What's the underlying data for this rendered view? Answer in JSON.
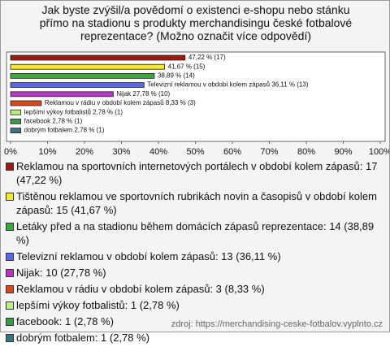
{
  "chart_data": {
    "type": "barh",
    "title": "Jak byste zvýšil/a povědomí o existenci e-shopu nebo stánku přímo na stadionu s produkty merchandisingu české fotbalové reprezentace? (Možno označit více odpovědí)",
    "values": [
      47.22,
      41.67,
      38.89,
      36.11,
      27.78,
      8.33,
      2.78,
      2.78,
      2.78
    ],
    "value_labels": [
      "47,22 % (17)",
      "41,67 % (15)",
      "38,89 % (14)",
      "Televizní reklamou v období kolem zápasů 36,11 % (13)",
      "Nijak 27,78 % (10)",
      "Reklamou v rádiu v období kolem zápasů 8,33 % (3)",
      "lepšími výkoy fotbalistů 2,78 % (1)",
      "facebook 2,78 % (1)",
      "dobrým fotbalem 2,78 % (1)"
    ],
    "colors": [
      "#9b1c0e",
      "#f2e63a",
      "#3aa83a",
      "#5a68e6",
      "#b636c8",
      "#d8481e",
      "#b9ee82",
      "#3d9a48",
      "#3b7483"
    ],
    "legend_labels": [
      "Reklamou na sportovních internetových portálech v období kolem zápasů: 17 (47,22 %)",
      "Tištěnou reklamou ve sportovních rubrikách novin a časopisů v období kolem zápasů: 15 (41,67 %)",
      "Letáky před a na stadionu během domácích zápasů reprezentace: 14 (38,89 %)",
      "Televizní reklamou v období kolem zápasů: 13 (36,11 %)",
      "Nijak: 10 (27,78 %)",
      "Reklamou v rádiu v období kolem zápasů: 3 (8,33 %)",
      "lepšími výkoy fotbalistů: 1 (2,78 %)",
      "facebook: 1 (2,78 %)",
      "dobrým fotbalem: 1 (2,78 %)"
    ],
    "xlim": [
      0,
      100
    ],
    "xticks": [
      {
        "value": 0,
        "label": "0%"
      },
      {
        "value": 10,
        "label": "10%"
      },
      {
        "value": 20,
        "label": "20%"
      },
      {
        "value": 30,
        "label": "30%"
      },
      {
        "value": 40,
        "label": "40%"
      },
      {
        "value": 50,
        "label": "50%"
      },
      {
        "value": 60,
        "label": "60%"
      },
      {
        "value": 70,
        "label": "70%"
      },
      {
        "value": 80,
        "label": "80%"
      },
      {
        "value": 90,
        "label": "90%"
      },
      {
        "value": 100,
        "label": "100%"
      }
    ],
    "source": "zdroj: https://merchandising-ceske-fotbalov.vyplnto.cz"
  }
}
